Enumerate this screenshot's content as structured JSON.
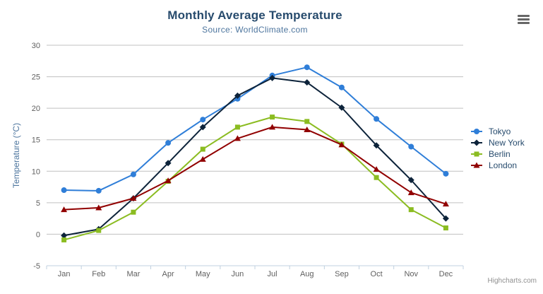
{
  "header": {
    "title": "Monthly Average Temperature",
    "subtitle": "Source: WorldClimate.com"
  },
  "export_menu": {
    "icon": "hamburger-menu-icon"
  },
  "credits": {
    "label": "Highcharts.com"
  },
  "colors": {
    "title": "#274b6d",
    "subtitle": "#4d759e",
    "axis_label": "#606060",
    "axis_title": "#4d759e",
    "gridline": "#c0c0c0",
    "axis_line": "#c0d0e0",
    "legend_text": "#274b6d",
    "credits_text": "#909090",
    "menu_icon": "#666666"
  },
  "chart_data": {
    "type": "line",
    "title": "Monthly Average Temperature",
    "subtitle": "Source: WorldClimate.com",
    "categories": [
      "Jan",
      "Feb",
      "Mar",
      "Apr",
      "May",
      "Jun",
      "Jul",
      "Aug",
      "Sep",
      "Oct",
      "Nov",
      "Dec"
    ],
    "xlabel": "",
    "ylabel": "Temperature (°C)",
    "ylim": [
      -5,
      30
    ],
    "yticks": [
      -5,
      0,
      5,
      10,
      15,
      20,
      25,
      30
    ],
    "grid": true,
    "legend_position": "right-middle",
    "series": [
      {
        "name": "Tokyo",
        "color": "#2f7ed8",
        "marker": "circle",
        "values": [
          7.0,
          6.9,
          9.5,
          14.5,
          18.2,
          21.5,
          25.2,
          26.5,
          23.3,
          18.3,
          13.9,
          9.6
        ]
      },
      {
        "name": "New York",
        "color": "#0d233a",
        "marker": "diamond",
        "values": [
          -0.2,
          0.8,
          5.7,
          11.3,
          17.0,
          22.0,
          24.8,
          24.1,
          20.1,
          14.1,
          8.6,
          2.5
        ]
      },
      {
        "name": "Berlin",
        "color": "#8bbc21",
        "marker": "square",
        "values": [
          -0.9,
          0.6,
          3.5,
          8.4,
          13.5,
          17.0,
          18.6,
          17.9,
          14.3,
          9.0,
          3.9,
          1.0
        ]
      },
      {
        "name": "London",
        "color": "#910000",
        "marker": "triangle",
        "values": [
          3.9,
          4.2,
          5.7,
          8.5,
          11.9,
          15.2,
          17.0,
          16.6,
          14.2,
          10.3,
          6.6,
          4.8
        ]
      }
    ]
  }
}
